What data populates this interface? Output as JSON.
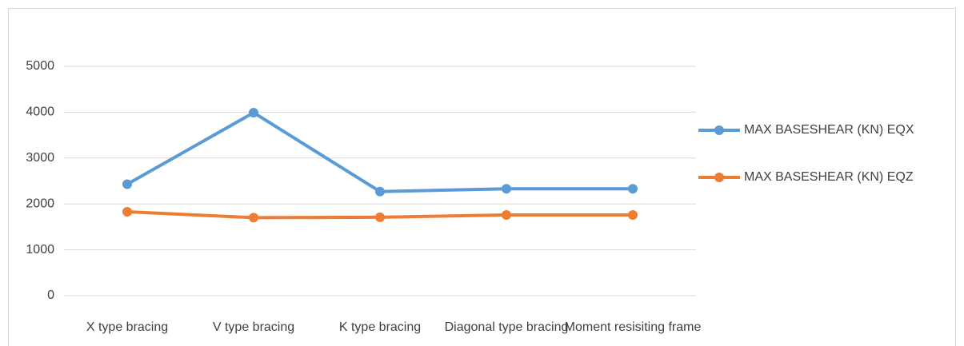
{
  "chart_data": {
    "type": "line",
    "categories": [
      "X type bracing",
      "V type bracing",
      "K type bracing",
      "Diagonal type bracing",
      "Moment resisiting frame"
    ],
    "series": [
      {
        "name": "MAX BASESHEAR (KN) EQX",
        "color": "#5b9bd5",
        "values": [
          2430,
          3990,
          2270,
          2330,
          2330
        ]
      },
      {
        "name": "MAX BASESHEAR (KN) EQZ",
        "color": "#ed7d31",
        "values": [
          1830,
          1700,
          1710,
          1760,
          1760
        ]
      }
    ],
    "ylim": [
      0,
      5000
    ],
    "yticks": [
      0,
      1000,
      2000,
      3000,
      4000,
      5000
    ],
    "grid": true,
    "legend": "right"
  }
}
